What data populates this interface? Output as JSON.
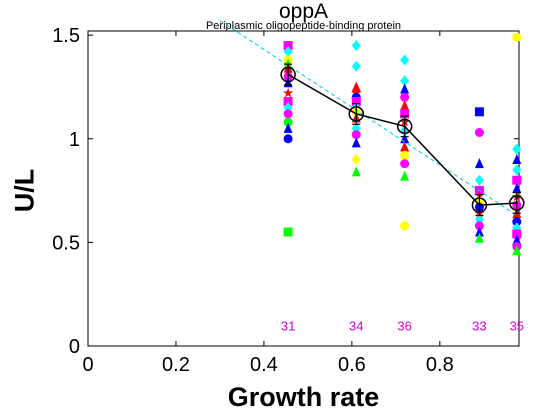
{
  "chart_data": {
    "type": "scatter",
    "title": "oppA",
    "subtitle": "Periplasmic oligopeptide-binding protein",
    "xlabel": "Growth rate",
    "ylabel": "U/L",
    "xlim": [
      0,
      0.98
    ],
    "ylim": [
      0,
      1.52
    ],
    "xticks": [
      "0",
      "0.2",
      "0.4",
      "0.6",
      "0.8"
    ],
    "yticks": [
      "0",
      "0.5",
      "1",
      "1.5"
    ],
    "grid": false,
    "groups": [
      {
        "x": 0.455,
        "count_label": "31"
      },
      {
        "x": 0.61,
        "count_label": "34"
      },
      {
        "x": 0.72,
        "count_label": "36"
      },
      {
        "x": 0.89,
        "count_label": "33"
      },
      {
        "x": 0.975,
        "count_label": "35"
      }
    ],
    "scatter_points": [
      {
        "x": 0.455,
        "y": 1.45,
        "color": "#ff00ff",
        "marker": "square"
      },
      {
        "x": 0.455,
        "y": 1.42,
        "color": "#00ffff",
        "marker": "diamond"
      },
      {
        "x": 0.455,
        "y": 1.38,
        "color": "#ffff00",
        "marker": "circle"
      },
      {
        "x": 0.455,
        "y": 1.36,
        "color": "#00ff00",
        "marker": "triangle"
      },
      {
        "x": 0.455,
        "y": 1.34,
        "color": "#ff0000",
        "marker": "triangle"
      },
      {
        "x": 0.455,
        "y": 1.3,
        "color": "#ff00ff",
        "marker": "circle"
      },
      {
        "x": 0.455,
        "y": 1.27,
        "color": "#0000ff",
        "marker": "triangle"
      },
      {
        "x": 0.455,
        "y": 1.22,
        "color": "#ff0000",
        "marker": "star"
      },
      {
        "x": 0.455,
        "y": 1.18,
        "color": "#ff00ff",
        "marker": "square"
      },
      {
        "x": 0.455,
        "y": 1.15,
        "color": "#00ffff",
        "marker": "diamond"
      },
      {
        "x": 0.455,
        "y": 1.12,
        "color": "#ff00ff",
        "marker": "circle"
      },
      {
        "x": 0.455,
        "y": 1.08,
        "color": "#00ff00",
        "marker": "circle"
      },
      {
        "x": 0.455,
        "y": 1.05,
        "color": "#0000ff",
        "marker": "triangle"
      },
      {
        "x": 0.455,
        "y": 1.0,
        "color": "#0000ff",
        "marker": "circle"
      },
      {
        "x": 0.455,
        "y": 0.55,
        "color": "#00ff00",
        "marker": "square"
      },
      {
        "x": 0.61,
        "y": 1.45,
        "color": "#00ffff",
        "marker": "diamond"
      },
      {
        "x": 0.61,
        "y": 1.35,
        "color": "#00ffff",
        "marker": "diamond"
      },
      {
        "x": 0.61,
        "y": 1.25,
        "color": "#ff0000",
        "marker": "triangle"
      },
      {
        "x": 0.61,
        "y": 1.22,
        "color": "#ff0000",
        "marker": "star"
      },
      {
        "x": 0.61,
        "y": 1.2,
        "color": "#0000ff",
        "marker": "circle"
      },
      {
        "x": 0.61,
        "y": 1.18,
        "color": "#ff00ff",
        "marker": "square"
      },
      {
        "x": 0.61,
        "y": 1.15,
        "color": "#00ffff",
        "marker": "diamond"
      },
      {
        "x": 0.61,
        "y": 1.13,
        "color": "#ffff00",
        "marker": "circle"
      },
      {
        "x": 0.61,
        "y": 1.1,
        "color": "#ff0000",
        "marker": "triangle"
      },
      {
        "x": 0.61,
        "y": 1.05,
        "color": "#00ffff",
        "marker": "diamond"
      },
      {
        "x": 0.61,
        "y": 1.02,
        "color": "#ff00ff",
        "marker": "circle"
      },
      {
        "x": 0.61,
        "y": 0.98,
        "color": "#0000ff",
        "marker": "triangle"
      },
      {
        "x": 0.61,
        "y": 0.9,
        "color": "#ffff00",
        "marker": "diamond"
      },
      {
        "x": 0.61,
        "y": 0.84,
        "color": "#00ff00",
        "marker": "triangle"
      },
      {
        "x": 0.72,
        "y": 1.38,
        "color": "#00ffff",
        "marker": "diamond"
      },
      {
        "x": 0.72,
        "y": 1.28,
        "color": "#00ffff",
        "marker": "diamond"
      },
      {
        "x": 0.72,
        "y": 1.24,
        "color": "#0000ff",
        "marker": "triangle"
      },
      {
        "x": 0.72,
        "y": 1.2,
        "color": "#ff00ff",
        "marker": "circle"
      },
      {
        "x": 0.72,
        "y": 1.16,
        "color": "#ff0000",
        "marker": "triangle"
      },
      {
        "x": 0.72,
        "y": 1.12,
        "color": "#ff00ff",
        "marker": "square"
      },
      {
        "x": 0.72,
        "y": 1.08,
        "color": "#ff0000",
        "marker": "star"
      },
      {
        "x": 0.72,
        "y": 1.04,
        "color": "#00ffff",
        "marker": "diamond"
      },
      {
        "x": 0.72,
        "y": 1.0,
        "color": "#0000ff",
        "marker": "triangle"
      },
      {
        "x": 0.72,
        "y": 0.96,
        "color": "#ff0000",
        "marker": "triangle"
      },
      {
        "x": 0.72,
        "y": 0.92,
        "color": "#ffff00",
        "marker": "circle"
      },
      {
        "x": 0.72,
        "y": 0.88,
        "color": "#ff00ff",
        "marker": "circle"
      },
      {
        "x": 0.72,
        "y": 0.82,
        "color": "#00ff00",
        "marker": "triangle"
      },
      {
        "x": 0.72,
        "y": 0.58,
        "color": "#ffff00",
        "marker": "circle"
      },
      {
        "x": 0.89,
        "y": 1.13,
        "color": "#0000ff",
        "marker": "square"
      },
      {
        "x": 0.89,
        "y": 1.03,
        "color": "#ff00ff",
        "marker": "circle"
      },
      {
        "x": 0.89,
        "y": 0.88,
        "color": "#0000ff",
        "marker": "triangle"
      },
      {
        "x": 0.89,
        "y": 0.8,
        "color": "#00ffff",
        "marker": "diamond"
      },
      {
        "x": 0.89,
        "y": 0.75,
        "color": "#ff00ff",
        "marker": "square"
      },
      {
        "x": 0.89,
        "y": 0.72,
        "color": "#ff0000",
        "marker": "triangle"
      },
      {
        "x": 0.89,
        "y": 0.7,
        "color": "#ffff00",
        "marker": "circle"
      },
      {
        "x": 0.89,
        "y": 0.67,
        "color": "#0000ff",
        "marker": "circle"
      },
      {
        "x": 0.89,
        "y": 0.64,
        "color": "#ff0000",
        "marker": "star"
      },
      {
        "x": 0.89,
        "y": 0.61,
        "color": "#00ffff",
        "marker": "diamond"
      },
      {
        "x": 0.89,
        "y": 0.58,
        "color": "#ff00ff",
        "marker": "circle"
      },
      {
        "x": 0.89,
        "y": 0.55,
        "color": "#0000ff",
        "marker": "triangle"
      },
      {
        "x": 0.89,
        "y": 0.52,
        "color": "#00ff00",
        "marker": "triangle"
      },
      {
        "x": 0.975,
        "y": 1.49,
        "color": "#ffff00",
        "marker": "circle"
      },
      {
        "x": 0.975,
        "y": 0.95,
        "color": "#00ffff",
        "marker": "diamond"
      },
      {
        "x": 0.975,
        "y": 0.9,
        "color": "#0000ff",
        "marker": "triangle"
      },
      {
        "x": 0.975,
        "y": 0.85,
        "color": "#00ffff",
        "marker": "diamond"
      },
      {
        "x": 0.975,
        "y": 0.8,
        "color": "#ff00ff",
        "marker": "square"
      },
      {
        "x": 0.975,
        "y": 0.76,
        "color": "#0000ff",
        "marker": "triangle"
      },
      {
        "x": 0.975,
        "y": 0.72,
        "color": "#ff0000",
        "marker": "star"
      },
      {
        "x": 0.975,
        "y": 0.68,
        "color": "#ff00ff",
        "marker": "circle"
      },
      {
        "x": 0.975,
        "y": 0.64,
        "color": "#ff0000",
        "marker": "triangle"
      },
      {
        "x": 0.975,
        "y": 0.6,
        "color": "#0000ff",
        "marker": "circle"
      },
      {
        "x": 0.975,
        "y": 0.57,
        "color": "#00ffff",
        "marker": "diamond"
      },
      {
        "x": 0.975,
        "y": 0.54,
        "color": "#ff00ff",
        "marker": "square"
      },
      {
        "x": 0.975,
        "y": 0.51,
        "color": "#0000ff",
        "marker": "triangle"
      },
      {
        "x": 0.975,
        "y": 0.48,
        "color": "#ff00ff",
        "marker": "circle"
      },
      {
        "x": 0.975,
        "y": 0.46,
        "color": "#00ff00",
        "marker": "triangle"
      }
    ],
    "mean_series": {
      "x": [
        0.455,
        0.61,
        0.72,
        0.89,
        0.975
      ],
      "y": [
        1.31,
        1.12,
        1.06,
        0.68,
        0.69
      ],
      "err": [
        0.05,
        0.05,
        0.05,
        0.05,
        0.05
      ],
      "color": "#000000"
    },
    "fit_line": {
      "x": [
        0.3,
        0.975
      ],
      "y": [
        1.57,
        0.63
      ],
      "color": "#00cccc",
      "style": "dashed"
    },
    "count_label_y": 0.1,
    "count_label_color": "#cc00cc"
  }
}
